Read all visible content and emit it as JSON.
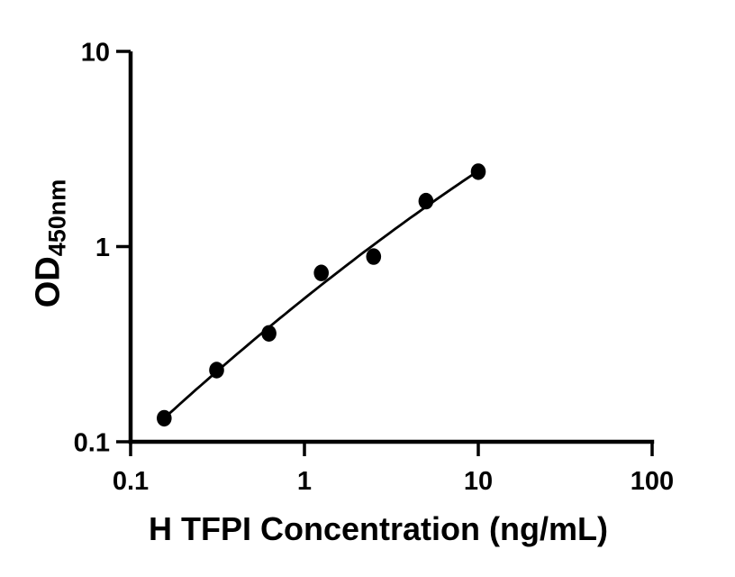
{
  "colors": {
    "ink": "#000000",
    "background": "#ffffff"
  },
  "chart_data": {
    "type": "scatter",
    "title": "",
    "xlabel": "H TFPI Concentration (ng/mL)",
    "ylabel_main": "OD",
    "ylabel_subscript": "450nm",
    "x_scale": "log",
    "y_scale": "log",
    "xlim": [
      0.1,
      100
    ],
    "ylim": [
      0.1,
      10
    ],
    "grid": false,
    "legend": "none",
    "x_ticks": [
      {
        "value": 0.1,
        "label": "0.1"
      },
      {
        "value": 1,
        "label": "1"
      },
      {
        "value": 10,
        "label": "10"
      },
      {
        "value": 100,
        "label": "100"
      }
    ],
    "y_ticks": [
      {
        "value": 0.1,
        "label": "0.1"
      },
      {
        "value": 1,
        "label": "1"
      },
      {
        "value": 10,
        "label": "10"
      }
    ],
    "points": [
      {
        "x": 0.156,
        "y": 0.132
      },
      {
        "x": 0.3125,
        "y": 0.233
      },
      {
        "x": 0.625,
        "y": 0.359
      },
      {
        "x": 1.25,
        "y": 0.733
      },
      {
        "x": 2.5,
        "y": 0.889
      },
      {
        "x": 5,
        "y": 1.71
      },
      {
        "x": 10,
        "y": 2.42
      }
    ],
    "fit_curve": {
      "type": "quadratic_loglog",
      "coefficients": {
        "intercept": -0.2654,
        "slope": 0.7128,
        "quad": -0.0594
      },
      "x_start": 0.156,
      "x_end": 10
    }
  }
}
